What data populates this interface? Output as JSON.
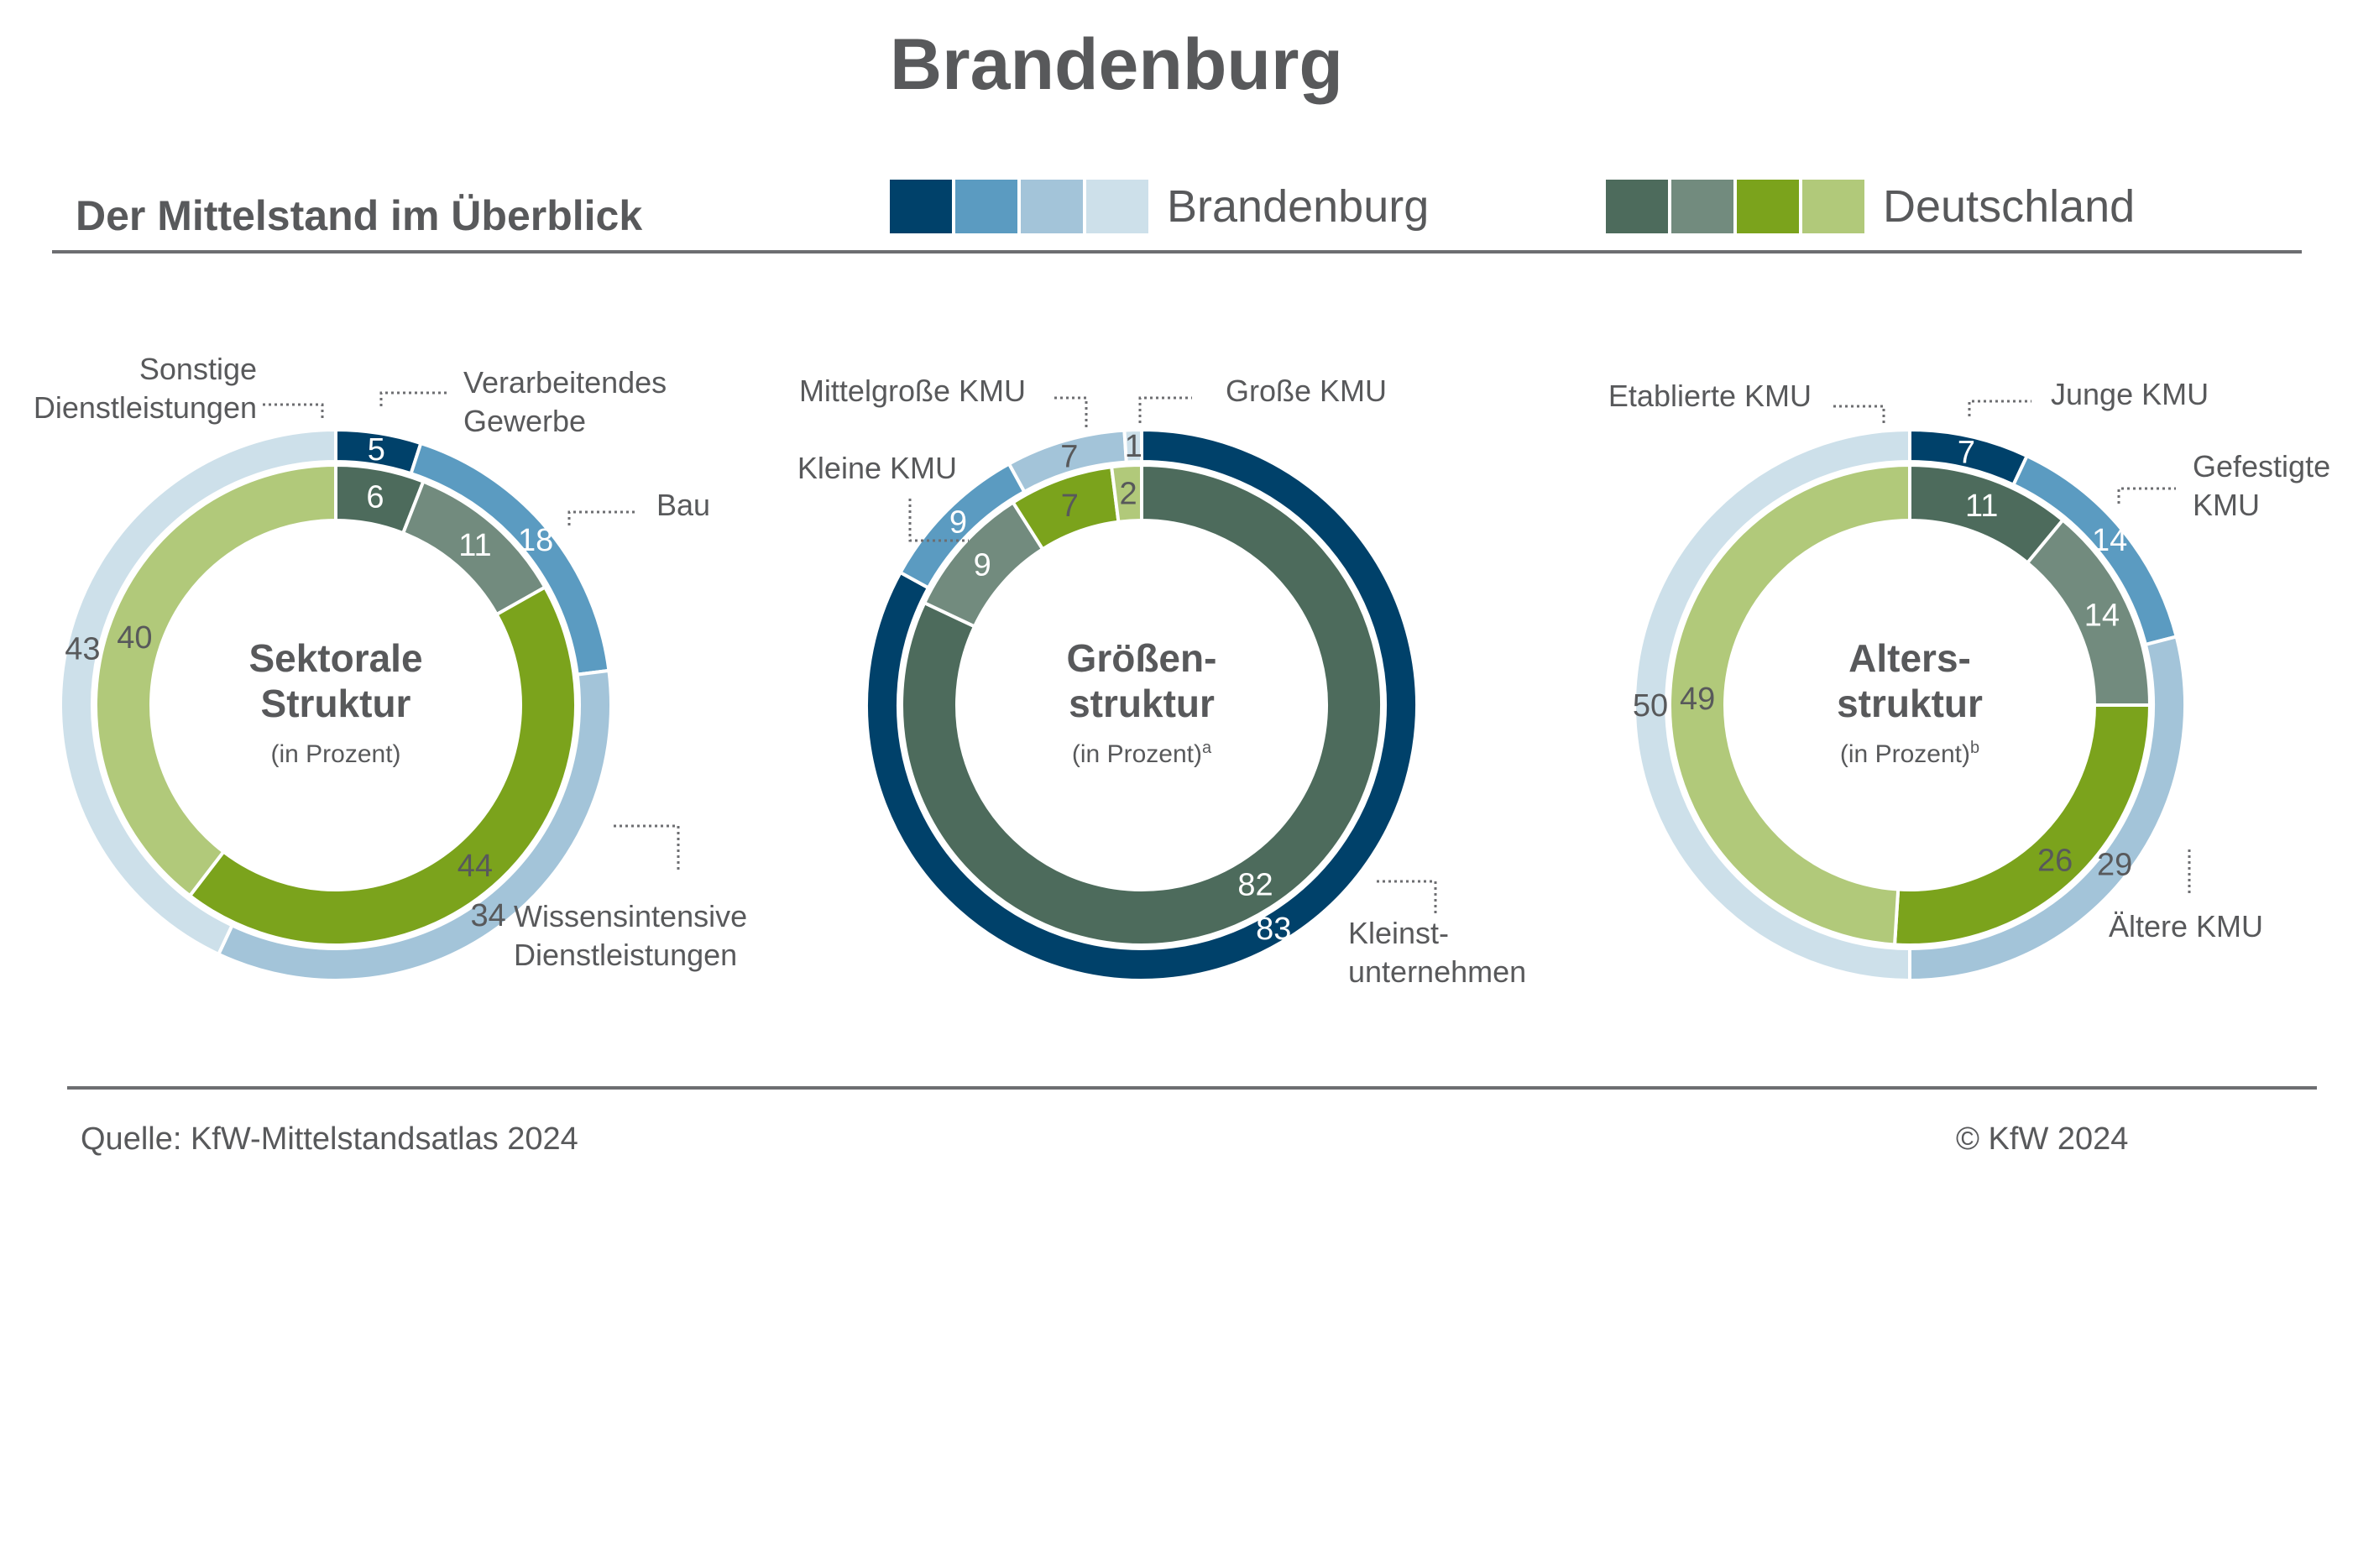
{
  "title": "Brandenburg",
  "subtitle": "Der Mittelstand im Überblick",
  "legend": [
    {
      "label": "Brandenburg",
      "colors": [
        "#00416a",
        "#5b9bc1",
        "#a3c4d9",
        "#cde0ea"
      ]
    },
    {
      "label": "Deutschland",
      "colors": [
        "#4d6b5c",
        "#728b7e",
        "#7ba31c",
        "#b1c97a"
      ]
    }
  ],
  "colors": {
    "outer": [
      "#00416a",
      "#5b9bc1",
      "#a3c4d9",
      "#cde0ea"
    ],
    "inner": [
      "#4d6b5c",
      "#728b7e",
      "#7ba31c",
      "#b1c97a"
    ]
  },
  "chart_data": [
    {
      "type": "pie",
      "title_lines": [
        "Sektorale",
        "Struktur"
      ],
      "unit_label": "(in Prozent)",
      "footnote": "",
      "categories": [
        "Verarbeitendes Gewerbe",
        "Bau",
        "Wissensintensive Dienstleistungen",
        "Sonstige Dienstleistungen"
      ],
      "series": [
        {
          "name": "Brandenburg",
          "values": [
            5,
            18,
            34,
            43
          ]
        },
        {
          "name": "Deutschland",
          "values": [
            6,
            11,
            44,
            40
          ]
        }
      ],
      "category_labels": [
        {
          "lines": [
            "Verarbeitendes",
            "Gewerbe"
          ]
        },
        {
          "lines": [
            "Bau"
          ]
        },
        {
          "lines": [
            "Wissensintensive",
            "Dienstleistungen"
          ]
        },
        {
          "lines": [
            "Sonstige",
            "Dienstleistungen"
          ]
        }
      ]
    },
    {
      "type": "pie",
      "title_lines": [
        "Größen-",
        "struktur"
      ],
      "unit_label": "(in Prozent)",
      "footnote": "a",
      "categories": [
        "Kleinstunternehmen",
        "Kleine KMU",
        "Mittelgroße KMU",
        "Große KMU"
      ],
      "series": [
        {
          "name": "Brandenburg",
          "values": [
            83,
            9,
            7,
            1
          ]
        },
        {
          "name": "Deutschland",
          "values": [
            82,
            9,
            7,
            2
          ]
        }
      ],
      "category_labels": [
        {
          "lines": [
            "Kleinst-",
            "unternehmen"
          ]
        },
        {
          "lines": [
            "Kleine KMU"
          ]
        },
        {
          "lines": [
            "Mittelgroße KMU"
          ]
        },
        {
          "lines": [
            "Große KMU"
          ]
        }
      ]
    },
    {
      "type": "pie",
      "title_lines": [
        "Alters-",
        "struktur"
      ],
      "unit_label": "(in Prozent)",
      "footnote": "b",
      "categories": [
        "Junge KMU",
        "Gefestigte KMU",
        "Ältere KMU",
        "Etablierte KMU"
      ],
      "series": [
        {
          "name": "Brandenburg",
          "values": [
            7,
            14,
            29,
            50
          ]
        },
        {
          "name": "Deutschland",
          "values": [
            11,
            14,
            26,
            49
          ]
        }
      ],
      "category_labels": [
        {
          "lines": [
            "Junge KMU"
          ]
        },
        {
          "lines": [
            "Gefestigte",
            "KMU"
          ]
        },
        {
          "lines": [
            "Ältere KMU"
          ]
        },
        {
          "lines": [
            "Etablierte KMU"
          ]
        }
      ]
    }
  ],
  "footer": {
    "source": "Quelle: KfW-Mittelstandsatlas 2024",
    "copyright": "© KfW 2024"
  }
}
